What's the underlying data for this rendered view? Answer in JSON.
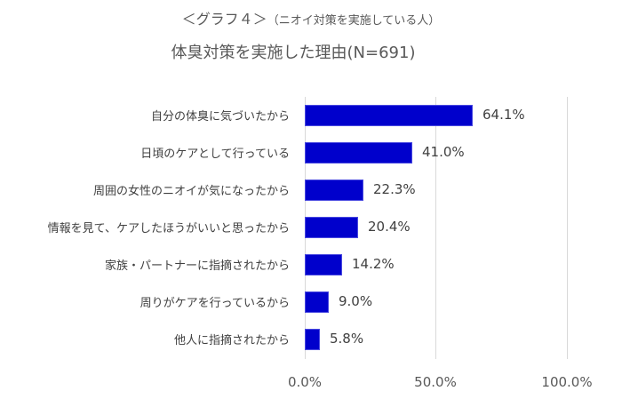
{
  "header": {
    "graph_label": "＜グラフ４＞",
    "graph_subtitle": "（ニオイ対策を実施している人）",
    "main_title": "体臭対策を実施した理由(N=691)"
  },
  "colors": {
    "bar": "#0000cc",
    "text": "#404040",
    "title": "#595959",
    "gridline": "#d9d9d9"
  },
  "axis": {
    "ticks": [
      "0.0%",
      "50.0%",
      "100.0%"
    ]
  },
  "bars": [
    {
      "label": "自分の体臭に気づいたから",
      "value": 64.1,
      "value_label": "64.1%"
    },
    {
      "label": "日頃のケアとして行っている",
      "value": 41.0,
      "value_label": "41.0%"
    },
    {
      "label": "周囲の女性のニオイが気になったから",
      "value": 22.3,
      "value_label": "22.3%"
    },
    {
      "label": "情報を見て、ケアしたほうがいいと思ったから",
      "value": 20.4,
      "value_label": "20.4%"
    },
    {
      "label": "家族・パートナーに指摘されたから",
      "value": 14.2,
      "value_label": "14.2%"
    },
    {
      "label": "周りがケアを行っているから",
      "value": 9.0,
      "value_label": "9.0%"
    },
    {
      "label": "他人に指摘されたから",
      "value": 5.8,
      "value_label": "5.8%"
    }
  ],
  "chart_data": {
    "type": "bar",
    "orientation": "horizontal",
    "title": "体臭対策を実施した理由(N=691)",
    "subtitle": "＜グラフ４＞（ニオイ対策を実施している人）",
    "categories": [
      "自分の体臭に気づいたから",
      "日頃のケアとして行っている",
      "周囲の女性のニオイが気になったから",
      "情報を見て、ケアしたほうがいいと思ったから",
      "家族・パートナーに指摘されたから",
      "周りがケアを行っているから",
      "他人に指摘されたから"
    ],
    "values": [
      64.1,
      41.0,
      22.3,
      20.4,
      14.2,
      9.0,
      5.8
    ],
    "data_labels": [
      "64.1%",
      "41.0%",
      "22.3%",
      "20.4%",
      "14.2%",
      "9.0%",
      "5.8%"
    ],
    "xlabel": "",
    "ylabel": "",
    "xlim": [
      0,
      100
    ],
    "xticks": [
      "0.0%",
      "50.0%",
      "100.0%"
    ],
    "grid": "vertical",
    "legend": "none",
    "bar_color": "#0000cc"
  }
}
